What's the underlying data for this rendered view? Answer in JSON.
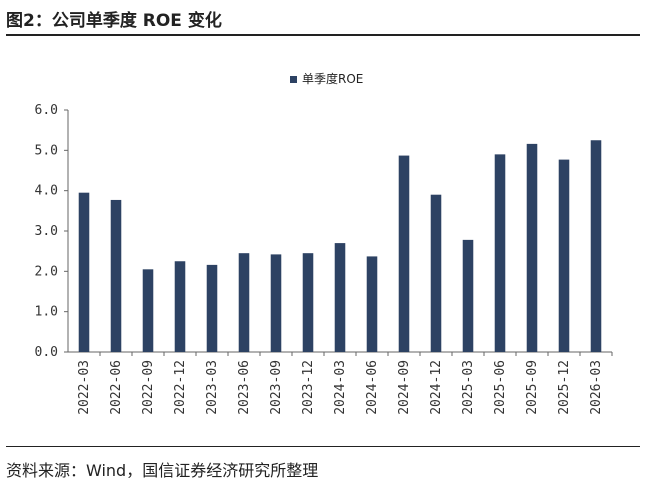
{
  "figure": {
    "title": "图2：公司单季度 ROE 变化",
    "source": "资料来源：Wind，国信证券经济研究所整理"
  },
  "colors": {
    "bar": "#2d4263",
    "axis": "#666666",
    "text": "#333333"
  },
  "chart_data": {
    "type": "bar",
    "title": "",
    "xlabel": "",
    "ylabel": "",
    "ylim": [
      0,
      6
    ],
    "yticks": [
      "0.0",
      "1.0",
      "2.0",
      "3.0",
      "4.0",
      "5.0",
      "6.0"
    ],
    "grid": false,
    "legend_position": "top-center",
    "categories": [
      "2022-03",
      "2022-06",
      "2022-09",
      "2022-12",
      "2023-03",
      "2023-06",
      "2023-09",
      "2023-12",
      "2024-03",
      "2024-06",
      "2024-09",
      "2024-12",
      "2025-03",
      "2025-06",
      "2025-09",
      "2025-12",
      "2026-03"
    ],
    "series": [
      {
        "name": "单季度ROE",
        "values": [
          3.95,
          3.77,
          2.05,
          2.25,
          2.16,
          2.45,
          2.42,
          2.45,
          2.7,
          2.37,
          4.87,
          3.9,
          2.78,
          4.9,
          5.16,
          4.77,
          5.25
        ]
      }
    ]
  }
}
